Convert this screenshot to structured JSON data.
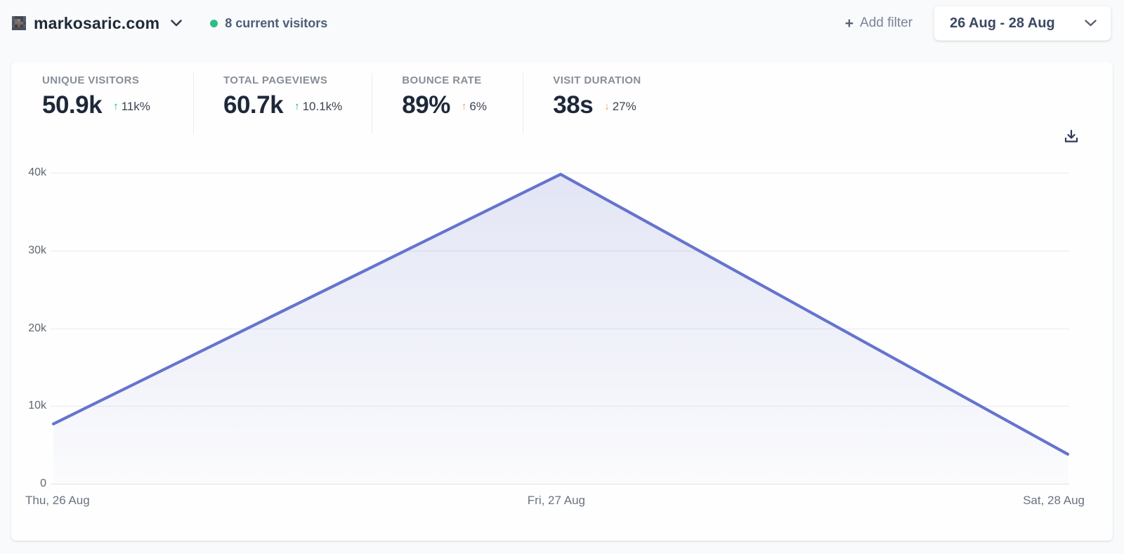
{
  "header": {
    "site_name": "markosaric.com",
    "current_visitors": "8 current visitors",
    "add_filter_label": "Add filter",
    "plus_glyph": "+",
    "date_range": "26 Aug - 28 Aug"
  },
  "stats": [
    {
      "label": "UNIQUE VISITORS",
      "value": "50.9k",
      "arrow": "↑",
      "change": "11k%",
      "sentiment": "positive"
    },
    {
      "label": "TOTAL PAGEVIEWS",
      "value": "60.7k",
      "arrow": "↑",
      "change": "10.1k%",
      "sentiment": "positive"
    },
    {
      "label": "BOUNCE RATE",
      "value": "89%",
      "arrow": "↑",
      "change": "6%",
      "sentiment": "negative"
    },
    {
      "label": "VISIT DURATION",
      "value": "38s",
      "arrow": "↓",
      "change": "27%",
      "sentiment": "negative"
    }
  ],
  "colors": {
    "positive": "#18b380",
    "negative": "#e2a065",
    "live_dot": "#2ebd86",
    "accent": "#6574cd"
  },
  "chart_data": {
    "type": "area",
    "title": "",
    "x": [
      "Thu, 26 Aug",
      "Fri, 27 Aug",
      "Sat, 28 Aug"
    ],
    "series": [
      {
        "name": "Unique visitors",
        "values": [
          7700,
          39800,
          3800
        ]
      }
    ],
    "ylim": [
      0,
      40000
    ],
    "yticks": [
      0,
      10000,
      20000,
      30000,
      40000
    ],
    "ytick_labels": [
      "0",
      "10k",
      "20k",
      "30k",
      "40k"
    ],
    "grid": true,
    "legend": false,
    "line_color": "#6574cd",
    "fill_top": "rgba(101,116,205,0.18)",
    "fill_bottom": "rgba(101,116,205,0.02)"
  }
}
